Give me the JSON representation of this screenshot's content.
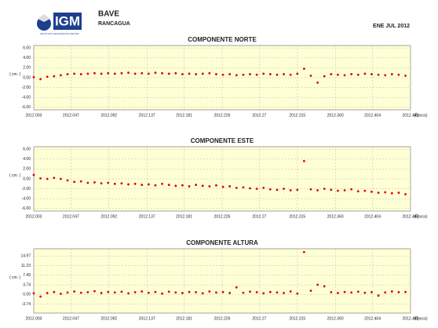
{
  "header": {
    "logo": "IGM",
    "logo_subtitle": "INSTITUTO GEOGRAFICO MILITAR",
    "station": "BAVE",
    "city": "RANCAGUA",
    "period": "ENE JUL 2012"
  },
  "chart_data": [
    {
      "type": "scatter",
      "title": "COMPONENTE NORTE",
      "y_label": "( cm. )",
      "x_label": "(Época)",
      "color": "#e00000",
      "grid": true,
      "x": [
        2012.003,
        2012.011,
        2012.019,
        2012.027,
        2012.035,
        2012.043,
        2012.051,
        2012.059,
        2012.067,
        2012.075,
        2012.083,
        2012.091,
        2012.099,
        2012.107,
        2012.115,
        2012.123,
        2012.131,
        2012.139,
        2012.147,
        2012.155,
        2012.163,
        2012.171,
        2012.179,
        2012.187,
        2012.195,
        2012.203,
        2012.211,
        2012.219,
        2012.227,
        2012.235,
        2012.243,
        2012.251,
        2012.259,
        2012.267,
        2012.275,
        2012.283,
        2012.291,
        2012.299,
        2012.307,
        2012.315,
        2012.323,
        2012.331,
        2012.339,
        2012.347,
        2012.355,
        2012.363,
        2012.371,
        2012.379,
        2012.387,
        2012.395,
        2012.403,
        2012.411,
        2012.419,
        2012.427,
        2012.435,
        2012.443
      ],
      "values": [
        0.1,
        -0.3,
        0.2,
        0.3,
        0.5,
        0.7,
        0.8,
        0.7,
        0.8,
        0.9,
        0.8,
        0.9,
        0.8,
        0.9,
        1.0,
        0.8,
        0.9,
        0.8,
        1.0,
        0.9,
        0.8,
        0.9,
        0.7,
        0.8,
        0.7,
        0.8,
        0.9,
        0.7,
        0.6,
        0.7,
        0.5,
        0.6,
        0.7,
        0.6,
        0.8,
        0.7,
        0.6,
        0.7,
        0.6,
        0.8,
        1.8,
        0.4,
        -1.0,
        0.3,
        0.7,
        0.6,
        0.5,
        0.7,
        0.6,
        0.8,
        0.7,
        0.6,
        0.5,
        0.7,
        0.6,
        0.4
      ],
      "xlim": [
        2012.003,
        2012.449
      ],
      "xticks": [
        2012.003,
        2012.047,
        2012.092,
        2012.137,
        2012.181,
        2012.226,
        2012.27,
        {
          "value": 2012.315,
          "label": "2012.315"
        },
        {
          "value": 2012.36,
          "label": "2012.360"
        },
        2012.404,
        2012.449
      ],
      "ylim": [
        -6.5,
        6.5
      ],
      "yticks": [
        {
          "value": 6,
          "label": "6.00"
        },
        {
          "value": 4,
          "label": "4.00"
        },
        {
          "value": 2,
          "label": "2.00"
        },
        {
          "value": 0,
          "label": "0.00"
        },
        {
          "value": -2,
          "label": "-2.00"
        },
        {
          "value": -4,
          "label": "-4.00"
        },
        {
          "value": -6,
          "label": "-6.00"
        }
      ]
    },
    {
      "type": "scatter",
      "title": "COMPONENTE ESTE",
      "y_label": "( cm. )",
      "x_label": "(Época)",
      "color": "#e00000",
      "grid": true,
      "x": [
        2012.003,
        2012.011,
        2012.019,
        2012.027,
        2012.035,
        2012.043,
        2012.051,
        2012.059,
        2012.067,
        2012.075,
        2012.083,
        2012.091,
        2012.099,
        2012.107,
        2012.115,
        2012.123,
        2012.131,
        2012.139,
        2012.147,
        2012.155,
        2012.163,
        2012.171,
        2012.179,
        2012.187,
        2012.195,
        2012.203,
        2012.211,
        2012.219,
        2012.227,
        2012.235,
        2012.243,
        2012.251,
        2012.259,
        2012.267,
        2012.275,
        2012.283,
        2012.291,
        2012.299,
        2012.307,
        2012.315,
        2012.323,
        2012.331,
        2012.339,
        2012.347,
        2012.355,
        2012.363,
        2012.371,
        2012.379,
        2012.387,
        2012.395,
        2012.403,
        2012.411,
        2012.419,
        2012.427,
        2012.435,
        2012.443
      ],
      "values": [
        0.8,
        0.1,
        0.0,
        0.2,
        0.0,
        -0.3,
        -0.6,
        -0.5,
        -0.8,
        -0.7,
        -0.9,
        -0.8,
        -1.0,
        -0.9,
        -1.1,
        -1.0,
        -1.2,
        -1.1,
        -1.3,
        -1.0,
        -1.2,
        -1.4,
        -1.3,
        -1.5,
        -1.2,
        -1.4,
        -1.5,
        -1.3,
        -1.6,
        -1.5,
        -1.8,
        -1.7,
        -1.9,
        -2.0,
        -1.8,
        -2.1,
        -2.2,
        -2.0,
        -2.3,
        -2.2,
        3.6,
        -2.1,
        -2.3,
        -2.0,
        -2.2,
        -2.4,
        -2.3,
        -2.1,
        -2.5,
        -2.4,
        -2.6,
        -2.8,
        -2.7,
        -2.9,
        -2.8,
        -3.1
      ],
      "xlim": [
        2012.003,
        2012.449
      ],
      "xticks": [
        2012.003,
        2012.047,
        2012.092,
        2012.137,
        2012.181,
        2012.226,
        2012.27,
        {
          "value": 2012.315,
          "label": "2012.315"
        },
        {
          "value": 2012.36,
          "label": "2012.360"
        },
        2012.404,
        2012.449
      ],
      "ylim": [
        -6.5,
        6.5
      ],
      "yticks": [
        {
          "value": 6,
          "label": "6.00"
        },
        {
          "value": 4,
          "label": "4.00"
        },
        {
          "value": 2,
          "label": "2.00"
        },
        {
          "value": 0,
          "label": "0.00"
        },
        {
          "value": -2,
          "label": "-2.00"
        },
        {
          "value": -4,
          "label": "-4.00"
        },
        {
          "value": -6,
          "label": "-6.00"
        }
      ]
    },
    {
      "type": "scatter",
      "title": "COMPONENTE ALTURA",
      "y_label": "( cm. )",
      "x_label": "(Época)",
      "color": "#e00000",
      "grid": true,
      "x": [
        2012.003,
        2012.011,
        2012.019,
        2012.027,
        2012.035,
        2012.043,
        2012.051,
        2012.059,
        2012.067,
        2012.075,
        2012.083,
        2012.091,
        2012.099,
        2012.107,
        2012.115,
        2012.123,
        2012.131,
        2012.139,
        2012.147,
        2012.155,
        2012.163,
        2012.171,
        2012.179,
        2012.187,
        2012.195,
        2012.203,
        2012.211,
        2012.219,
        2012.227,
        2012.235,
        2012.243,
        2012.251,
        2012.259,
        2012.267,
        2012.275,
        2012.283,
        2012.291,
        2012.299,
        2012.307,
        2012.315,
        2012.323,
        2012.331,
        2012.339,
        2012.347,
        2012.355,
        2012.363,
        2012.371,
        2012.379,
        2012.387,
        2012.395,
        2012.403,
        2012.411,
        2012.419,
        2012.427,
        2012.435,
        2012.443
      ],
      "values": [
        0.5,
        -0.8,
        0.6,
        1.0,
        0.3,
        0.8,
        1.2,
        0.7,
        0.9,
        1.3,
        0.6,
        1.0,
        0.8,
        1.1,
        0.5,
        0.9,
        1.2,
        0.7,
        1.0,
        0.4,
        1.1,
        0.8,
        0.6,
        1.0,
        0.9,
        0.5,
        1.2,
        0.8,
        1.0,
        0.6,
        2.8,
        0.7,
        1.1,
        0.9,
        0.5,
        1.0,
        0.8,
        0.6,
        1.2,
        0.4,
        16.5,
        1.5,
        3.8,
        3.2,
        0.9,
        0.6,
        1.0,
        0.8,
        1.1,
        0.7,
        0.9,
        -0.4,
        0.8,
        1.2,
        0.9,
        1.0
      ],
      "xlim": [
        2012.003,
        2012.449
      ],
      "xticks": [
        2012.003,
        2012.047,
        2012.092,
        2012.137,
        2012.181,
        2012.226,
        2012.27,
        {
          "value": 2012.315,
          "label": "2012.315"
        },
        {
          "value": 2012.36,
          "label": "2012.360"
        },
        2012.404,
        2012.449
      ],
      "ylim": [
        -7.2,
        17.8
      ],
      "yticks": [
        14.97,
        11.23,
        7.49,
        3.74,
        {
          "value": 0,
          "label": "0.00"
        },
        -3.74
      ]
    }
  ]
}
